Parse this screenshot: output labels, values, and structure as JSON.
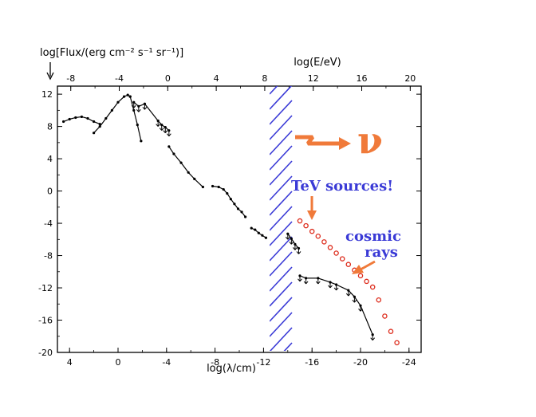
{
  "chart_data": {
    "type": "scatter",
    "ylabel": "log[Flux/(erg cm⁻² s⁻¹ sr⁻¹)]",
    "xlabel_bottom": "log(λ/cm)",
    "xlabel_top": "log(E/eV)",
    "xlim_bottom": [
      5,
      -25
    ],
    "xlim_top": [
      -9.1,
      20.9
    ],
    "ylim": [
      -20,
      13
    ],
    "y_ticks": [
      "12",
      "8",
      "4",
      "0",
      "-4",
      "-8",
      "-12",
      "-16",
      "-20"
    ],
    "x_ticks_bottom": [
      "4",
      "0",
      "-4",
      "-8",
      "-12",
      "-16",
      "-20",
      "-24"
    ],
    "x_ticks_top": [
      "-8",
      "-4",
      "0",
      "4",
      "8",
      "12",
      "16",
      "20"
    ],
    "annotations": {
      "tev": "TeV sources!",
      "cosmic_line1": "cosmic",
      "cosmic_line2": "rays",
      "nu": "ν"
    },
    "colors": {
      "annotation_blue": "#3a3ad6",
      "arrow_orange": "#f07a3a",
      "cosmic_ray_red": "#dd2a1a",
      "axis": "#000000"
    },
    "series": [
      {
        "values": [
          [
            4.5,
            8.6
          ],
          [
            4,
            8.9
          ],
          [
            3.5,
            9.1
          ],
          [
            3,
            9.2
          ],
          [
            2.5,
            9.0
          ],
          [
            2,
            8.6
          ],
          [
            1.5,
            8.3
          ]
        ]
      },
      {
        "values": [
          [
            2,
            7.2
          ],
          [
            1.5,
            8.0
          ],
          [
            1,
            9.0
          ],
          [
            0.5,
            10.0
          ],
          [
            0,
            11.0
          ],
          [
            -0.5,
            11.7
          ],
          [
            -0.8,
            11.9
          ],
          [
            -1,
            11.7
          ]
        ]
      },
      {
        "values": [
          [
            -1,
            11.7
          ],
          [
            -1.3,
            10.0
          ],
          [
            -1.6,
            8.2
          ],
          [
            -1.9,
            6.2
          ]
        ]
      },
      {
        "values": [
          [
            -1.3,
            11.0
          ],
          [
            -1.7,
            10.5
          ],
          [
            -2.2,
            10.8
          ],
          [
            -3.3,
            8.7
          ],
          [
            -3.6,
            8.2
          ],
          [
            -3.9,
            7.9
          ],
          [
            -4.2,
            7.5
          ]
        ]
      },
      {
        "values": [
          [
            -4.2,
            5.5
          ],
          [
            -4.6,
            4.6
          ],
          [
            -5.2,
            3.5
          ],
          [
            -5.8,
            2.3
          ],
          [
            -6.3,
            1.5
          ],
          [
            -7,
            0.5
          ]
        ]
      },
      {
        "values": [
          [
            -7.8,
            0.6
          ],
          [
            -8.3,
            0.5
          ],
          [
            -8.7,
            0.2
          ],
          [
            -9.0,
            -0.3
          ],
          [
            -9.3,
            -1.0
          ],
          [
            -9.6,
            -1.6
          ],
          [
            -9.9,
            -2.2
          ],
          [
            -10.2,
            -2.6
          ],
          [
            -10.5,
            -3.2
          ]
        ]
      },
      {
        "values": [
          [
            -11,
            -4.6
          ],
          [
            -11.3,
            -4.8
          ],
          [
            -11.6,
            -5.2
          ],
          [
            -11.9,
            -5.5
          ],
          [
            -12.2,
            -5.8
          ]
        ]
      },
      {
        "values": [
          [
            -14,
            -5.3
          ],
          [
            -14.3,
            -5.9
          ],
          [
            -14.6,
            -6.6
          ],
          [
            -14.9,
            -7.1
          ]
        ]
      },
      {
        "values": [
          [
            -15,
            -10.5
          ],
          [
            -15.5,
            -10.8
          ],
          [
            -16.5,
            -10.8
          ],
          [
            -17.5,
            -11.3
          ],
          [
            -18,
            -11.6
          ],
          [
            -19,
            -12.3
          ],
          [
            -19.5,
            -13.1
          ],
          [
            -20,
            -14.2
          ],
          [
            -21,
            -17.8
          ]
        ]
      },
      {
        "values": [
          [
            -15,
            -3.7
          ],
          [
            -15.5,
            -4.3
          ],
          [
            -16,
            -5.0
          ],
          [
            -16.5,
            -5.6
          ],
          [
            -17,
            -6.3
          ],
          [
            -17.5,
            -7.0
          ],
          [
            -18,
            -7.7
          ],
          [
            -18.5,
            -8.4
          ],
          [
            -19,
            -9.1
          ],
          [
            -19.5,
            -9.8
          ],
          [
            -20,
            -10.5
          ],
          [
            -20.5,
            -11.2
          ],
          [
            -21,
            -11.9
          ],
          [
            -21.5,
            -13.5
          ],
          [
            -22,
            -15.5
          ],
          [
            -22.5,
            -17.4
          ],
          [
            -23,
            -18.8
          ]
        ]
      }
    ]
  }
}
